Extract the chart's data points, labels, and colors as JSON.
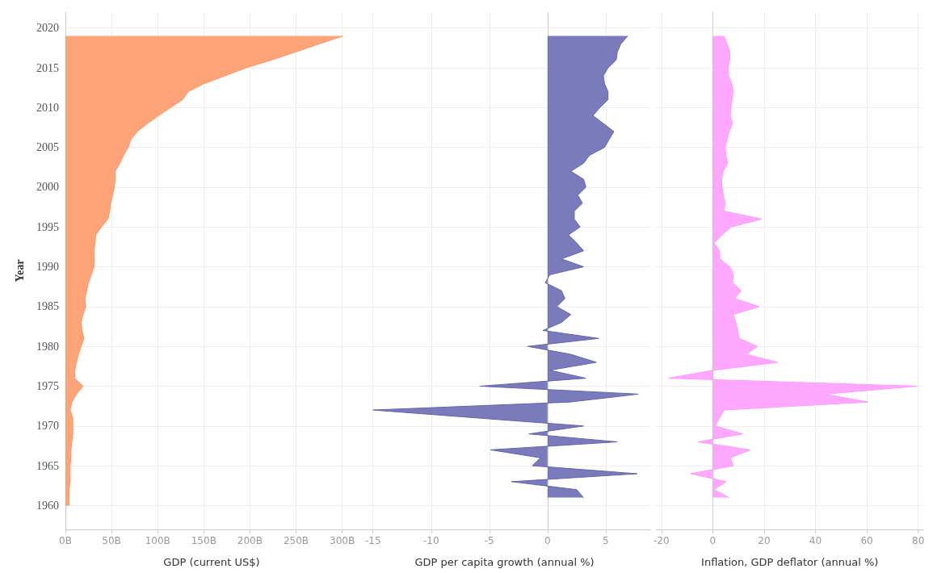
{
  "chart_data": [
    {
      "type": "area",
      "orientation": "horizontal",
      "ylabel": "Year",
      "xlabel": "GDP (current US$)",
      "color": "#ff9362",
      "grid": true,
      "x": [
        1960,
        1961,
        1962,
        1963,
        1964,
        1965,
        1966,
        1967,
        1968,
        1969,
        1970,
        1971,
        1972,
        1973,
        1974,
        1975,
        1976,
        1977,
        1978,
        1979,
        1980,
        1981,
        1982,
        1983,
        1984,
        1985,
        1986,
        1987,
        1988,
        1989,
        1990,
        1991,
        1992,
        1993,
        1994,
        1995,
        1996,
        1997,
        1998,
        1999,
        2000,
        2001,
        2002,
        2003,
        2004,
        2005,
        2006,
        2007,
        2008,
        2009,
        2010,
        2011,
        2012,
        2013,
        2014,
        2015,
        2016,
        2017,
        2018,
        2019
      ],
      "values": [
        4,
        4,
        4,
        5,
        5,
        5,
        6,
        6,
        7,
        8,
        8,
        8,
        5,
        7,
        12,
        19,
        10,
        10,
        12,
        14,
        17,
        20,
        18,
        17,
        19,
        22,
        21,
        23,
        25,
        28,
        31,
        31,
        31,
        32,
        33,
        39,
        46,
        48,
        49,
        51,
        53,
        54,
        54,
        59,
        63,
        68,
        71,
        78,
        89,
        101,
        114,
        127,
        133,
        150,
        173,
        196,
        224,
        250,
        275,
        301
      ],
      "xlim": [
        0,
        317
      ],
      "xticks": [
        {
          "value": 0,
          "label": "0B"
        },
        {
          "value": 50,
          "label": "50B"
        },
        {
          "value": 100,
          "label": "100B"
        },
        {
          "value": 150,
          "label": "150B"
        },
        {
          "value": 200,
          "label": "200B"
        },
        {
          "value": 250,
          "label": "250B"
        },
        {
          "value": 300,
          "label": "300B"
        }
      ],
      "ylim": [
        1957,
        2022
      ],
      "yticks": [
        1960,
        1965,
        1970,
        1975,
        1980,
        1985,
        1990,
        1995,
        2000,
        2005,
        2010,
        2015,
        2020
      ]
    },
    {
      "type": "area",
      "orientation": "horizontal",
      "xlabel": "GDP per capita growth (annual %)",
      "color": "#6364ae",
      "grid": true,
      "tick_labels": "x",
      "x": [
        1961,
        1962,
        1963,
        1964,
        1965,
        1966,
        1967,
        1968,
        1969,
        1970,
        1971,
        1972,
        1973,
        1974,
        1975,
        1976,
        1977,
        1978,
        1979,
        1980,
        1981,
        1982,
        1983,
        1984,
        1985,
        1986,
        1987,
        1988,
        1989,
        1990,
        1991,
        1992,
        1993,
        1994,
        1995,
        1996,
        1997,
        1998,
        1999,
        2000,
        2001,
        2002,
        2003,
        2004,
        2005,
        2006,
        2007,
        2008,
        2009,
        2010,
        2011,
        2012,
        2013,
        2014,
        2015,
        2016,
        2017,
        2018,
        2019
      ],
      "values": [
        3.1,
        2.5,
        -3.1,
        7.7,
        -1.3,
        -0.6,
        -4.9,
        6.0,
        -1.6,
        3.1,
        -6.0,
        -15.0,
        1.9,
        7.8,
        -5.8,
        3.3,
        0.2,
        4.2,
        2.0,
        -1.7,
        4.4,
        -0.4,
        1.2,
        2.0,
        0.8,
        1.5,
        1.2,
        -0.2,
        0.2,
        3.1,
        1.2,
        3.1,
        2.5,
        1.8,
        2.8,
        2.3,
        2.3,
        3.0,
        2.6,
        3.3,
        3.1,
        2.0,
        3.1,
        3.6,
        4.9,
        5.3,
        5.7,
        4.8,
        3.9,
        4.5,
        5.2,
        5.2,
        4.9,
        4.8,
        5.2,
        5.9,
        6.0,
        6.3,
        6.9
      ],
      "xlim": [
        -16.3,
        8.9
      ],
      "xticks": [
        -15,
        -10,
        -5,
        0,
        5
      ],
      "ylim": [
        1957,
        2022
      ],
      "yticks": [
        1960,
        1965,
        1970,
        1975,
        1980,
        1985,
        1990,
        1995,
        2000,
        2005,
        2010,
        2015,
        2020
      ]
    },
    {
      "type": "area",
      "orientation": "horizontal",
      "xlabel": "Inflation, GDP deflator (annual %)",
      "color": "#ff99ff",
      "grid": true,
      "tick_labels": "x",
      "x": [
        1961,
        1962,
        1963,
        1964,
        1965,
        1966,
        1967,
        1968,
        1969,
        1970,
        1971,
        1972,
        1973,
        1974,
        1975,
        1976,
        1977,
        1978,
        1979,
        1980,
        1981,
        1982,
        1983,
        1984,
        1985,
        1986,
        1987,
        1988,
        1989,
        1990,
        1991,
        1992,
        1993,
        1994,
        1995,
        1996,
        1997,
        1998,
        1999,
        2000,
        2001,
        2002,
        2003,
        2004,
        2005,
        2006,
        2007,
        2008,
        2009,
        2010,
        2011,
        2012,
        2013,
        2014,
        2015,
        2016,
        2017,
        2018,
        2019
      ],
      "values": [
        6.4,
        0.5,
        5.3,
        -8.6,
        8.0,
        6.8,
        14.6,
        -5.7,
        11.7,
        0.9,
        2.6,
        4.4,
        60.5,
        43.8,
        79.6,
        -17.2,
        0.2,
        25.4,
        12.9,
        17.4,
        10.3,
        9.7,
        9.0,
        8.0,
        18.1,
        8.5,
        11.0,
        7.7,
        8.0,
        6.6,
        2.8,
        2.6,
        0.5,
        3.6,
        7.1,
        19.1,
        4.3,
        4.8,
        4.1,
        3.6,
        3.4,
        4.1,
        5.8,
        5.1,
        4.8,
        5.6,
        6.4,
        7.7,
        6.8,
        7.1,
        7.5,
        8.0,
        7.4,
        6.1,
        5.9,
        6.6,
        6.6,
        5.6,
        4.4
      ],
      "xlim": [
        -22,
        82
      ],
      "xticks": [
        -20,
        0,
        20,
        40,
        60,
        80
      ],
      "ylim": [
        1957,
        2022
      ],
      "yticks": [
        1960,
        1965,
        1970,
        1975,
        1980,
        1985,
        1990,
        1995,
        2000,
        2005,
        2010,
        2015,
        2020
      ]
    }
  ]
}
